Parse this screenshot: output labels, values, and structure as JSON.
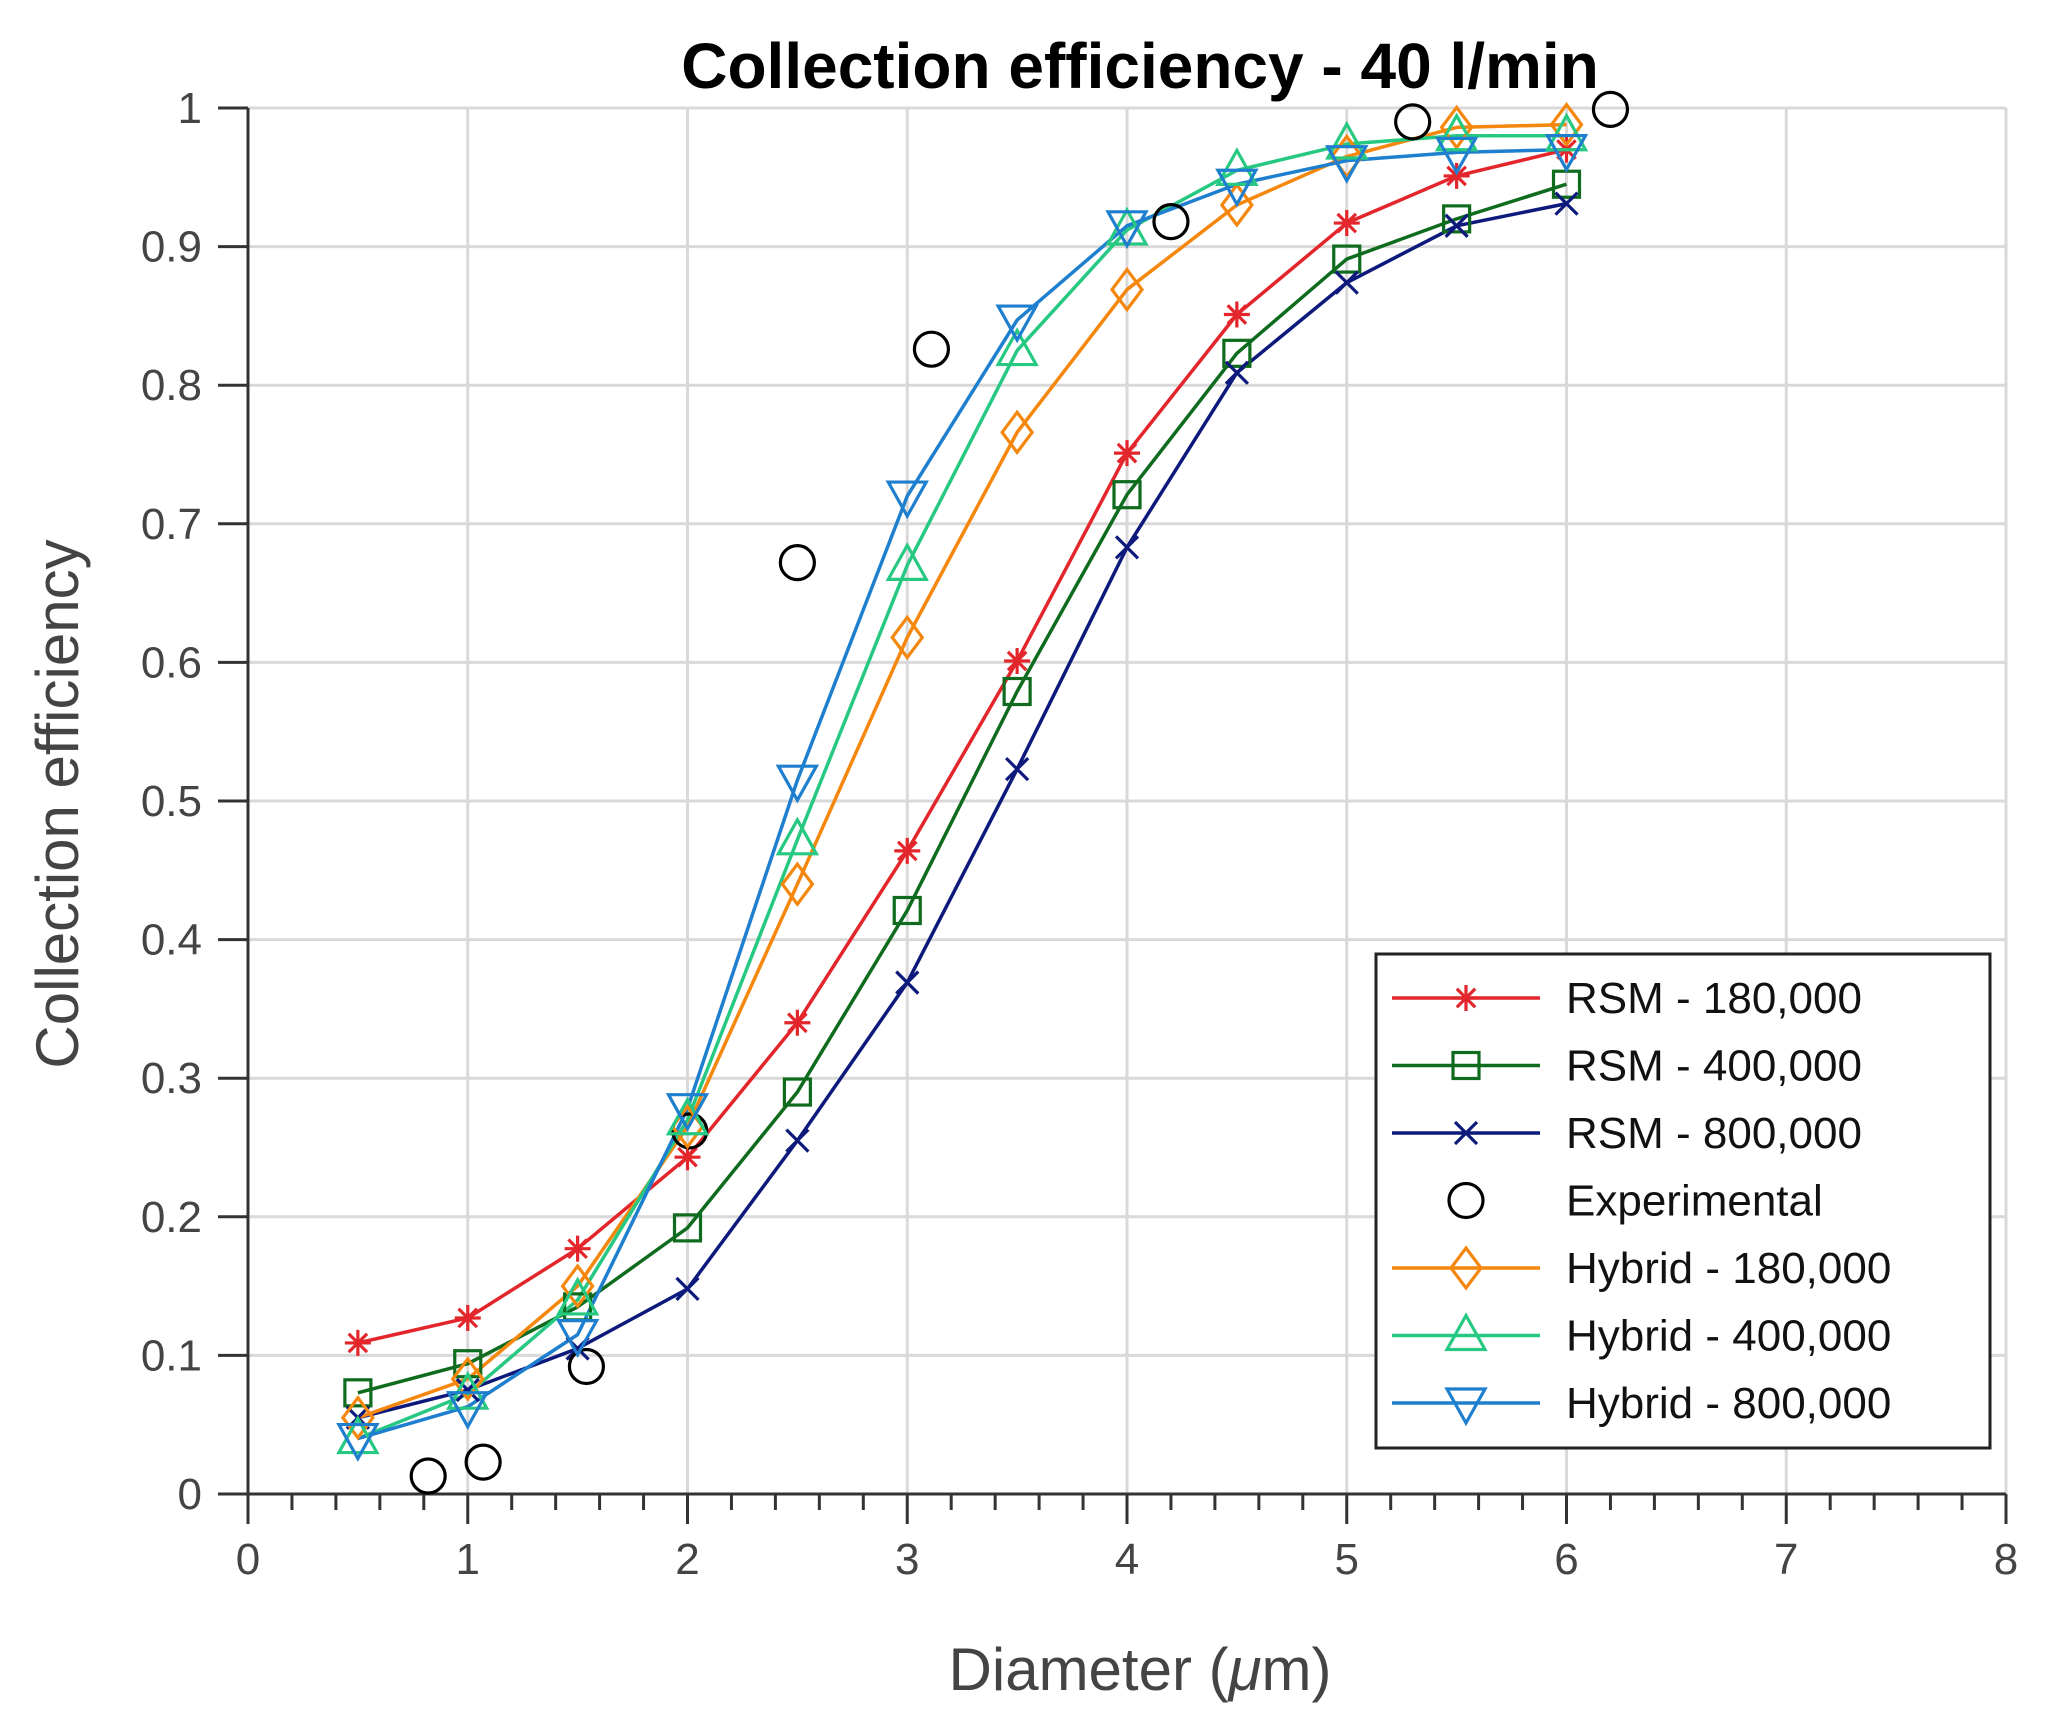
{
  "chart_data": {
    "type": "line",
    "title": "Collection efficiency - 40 l/min",
    "xlabel_prefix": "Diameter (",
    "xlabel_mu": "μ",
    "xlabel_suffix": "m)",
    "ylabel": "Collection efficiency",
    "xlim": [
      0,
      8
    ],
    "ylim": [
      0,
      1
    ],
    "xticks": [
      0,
      1,
      2,
      3,
      4,
      5,
      6,
      7,
      8
    ],
    "yticks": [
      0,
      0.1,
      0.2,
      0.3,
      0.4,
      0.5,
      0.6,
      0.7,
      0.8,
      0.9,
      1
    ],
    "xtick_labels": [
      "0",
      "1",
      "2",
      "3",
      "4",
      "5",
      "6",
      "7",
      "8"
    ],
    "ytick_labels": [
      "0",
      "0.1",
      "0.2",
      "0.3",
      "0.4",
      "0.5",
      "0.6",
      "0.7",
      "0.8",
      "0.9",
      "1"
    ],
    "grid": true,
    "legend_position": "bottom-right",
    "series": [
      {
        "name": "RSM - 180,000",
        "color": "#e3262b",
        "marker": "asterisk",
        "line": true,
        "x": [
          0.5,
          1.0,
          1.5,
          2.0,
          2.5,
          3.0,
          3.5,
          4.0,
          4.5,
          5.0,
          5.5,
          6.0
        ],
        "y": [
          0.109,
          0.127,
          0.177,
          0.243,
          0.34,
          0.464,
          0.601,
          0.751,
          0.851,
          0.917,
          0.951,
          0.97
        ]
      },
      {
        "name": "RSM - 400,000",
        "color": "#0f6b1d",
        "marker": "square",
        "line": true,
        "x": [
          0.5,
          1.0,
          1.5,
          2.0,
          2.5,
          3.0,
          3.5,
          4.0,
          4.5,
          5.0,
          5.5,
          6.0
        ],
        "y": [
          0.073,
          0.094,
          0.135,
          0.192,
          0.29,
          0.421,
          0.579,
          0.721,
          0.823,
          0.891,
          0.92,
          0.945
        ]
      },
      {
        "name": "RSM - 800,000",
        "color": "#0d1a7c",
        "marker": "x",
        "line": true,
        "x": [
          0.5,
          1.0,
          1.5,
          2.0,
          2.5,
          3.0,
          3.5,
          4.0,
          4.5,
          5.0,
          5.5,
          6.0
        ],
        "y": [
          0.055,
          0.075,
          0.105,
          0.148,
          0.255,
          0.369,
          0.523,
          0.683,
          0.809,
          0.874,
          0.915,
          0.931
        ]
      },
      {
        "name": "Experimental",
        "color": "#000000",
        "marker": "circle",
        "line": false,
        "x": [
          0.82,
          1.07,
          1.54,
          2.01,
          2.5,
          3.11,
          4.2,
          5.3,
          6.2
        ],
        "y": [
          0.013,
          0.023,
          0.092,
          0.262,
          0.672,
          0.826,
          0.918,
          0.99,
          0.999
        ]
      },
      {
        "name": "Hybrid - 180,000",
        "color": "#f5870d",
        "marker": "diamond",
        "line": true,
        "x": [
          0.5,
          1.0,
          1.5,
          2.0,
          2.5,
          3.0,
          3.5,
          4.0,
          4.5,
          5.0,
          5.5,
          6.0
        ],
        "y": [
          0.055,
          0.083,
          0.15,
          0.265,
          0.44,
          0.618,
          0.766,
          0.869,
          0.93,
          0.965,
          0.986,
          0.988
        ]
      },
      {
        "name": "Hybrid - 400,000",
        "color": "#27c982",
        "marker": "triangle-up",
        "line": true,
        "x": [
          0.5,
          1.0,
          1.5,
          2.0,
          2.5,
          3.0,
          3.5,
          4.0,
          4.5,
          5.0,
          5.5,
          6.0
        ],
        "y": [
          0.04,
          0.072,
          0.14,
          0.27,
          0.472,
          0.67,
          0.825,
          0.912,
          0.955,
          0.974,
          0.98,
          0.98
        ]
      },
      {
        "name": "Hybrid - 800,000",
        "color": "#1f7fcf",
        "marker": "triangle-down",
        "line": true,
        "x": [
          0.5,
          1.0,
          1.5,
          2.0,
          2.5,
          3.0,
          3.5,
          4.0,
          4.5,
          5.0,
          5.5,
          6.0
        ],
        "y": [
          0.04,
          0.063,
          0.115,
          0.278,
          0.515,
          0.72,
          0.847,
          0.915,
          0.945,
          0.962,
          0.968,
          0.97
        ]
      }
    ]
  }
}
